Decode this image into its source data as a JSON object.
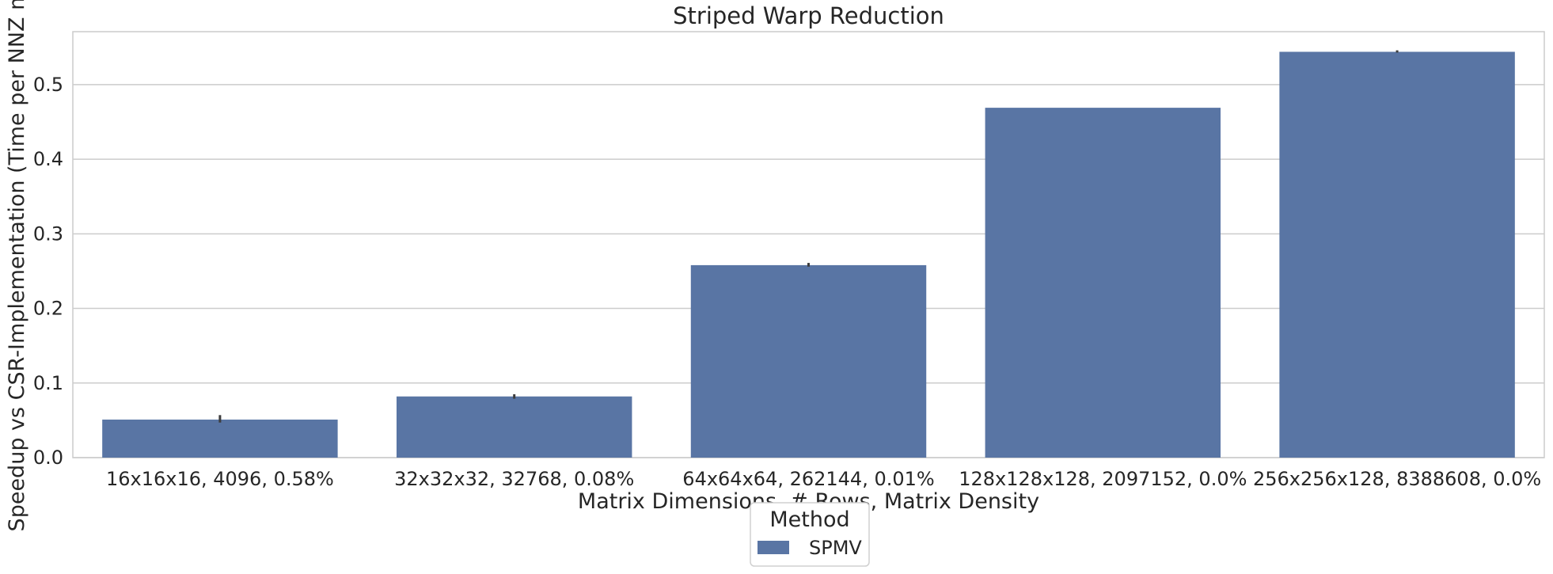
{
  "chart_data": {
    "type": "bar",
    "title": "Striped Warp Reduction",
    "xlabel": "Matrix Dimensions, # Rows, Matrix Density",
    "ylabel": "Speedup vs CSR-Implementation (Time per NNZ m",
    "categories": [
      "16x16x16, 4096, 0.58%",
      "32x32x32, 32768, 0.08%",
      "64x64x64, 262144, 0.01%",
      "128x128x128, 2097152, 0.0%",
      "256x256x128, 8388608, 0.0%"
    ],
    "series": [
      {
        "name": "SPMV",
        "values": [
          0.051,
          0.082,
          0.258,
          0.469,
          0.544
        ],
        "error_low": [
          0.047,
          0.079,
          0.256,
          0.469,
          0.543
        ],
        "error_high": [
          0.057,
          0.085,
          0.261,
          0.469,
          0.546
        ],
        "color": "#5975a4"
      }
    ],
    "ylim": [
      0,
      0.571
    ],
    "yticks": [
      0.0,
      0.1,
      0.2,
      0.3,
      0.4,
      0.5
    ],
    "ytick_labels": [
      "0.0",
      "0.1",
      "0.2",
      "0.3",
      "0.4",
      "0.5"
    ],
    "grid": "y",
    "legend": {
      "title": "Method",
      "placement": "bottom-center",
      "entries": [
        "SPMV"
      ]
    }
  }
}
